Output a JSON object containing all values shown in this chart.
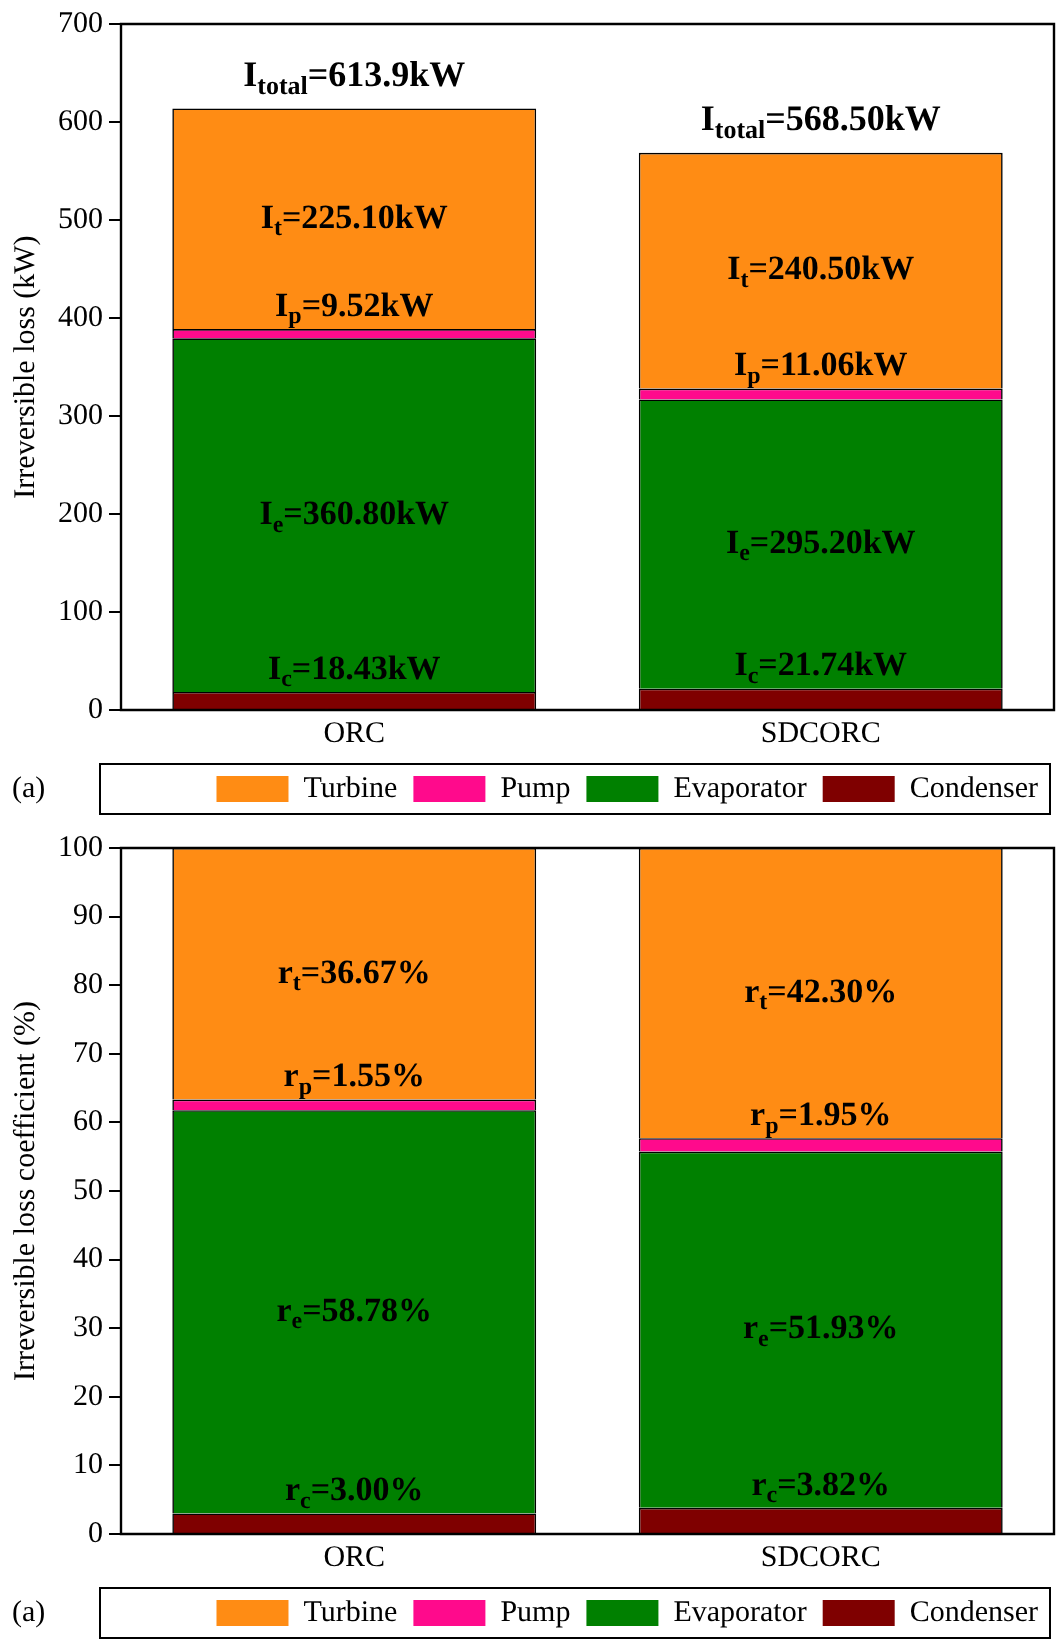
{
  "chart_data": [
    {
      "type": "bar",
      "stacked": true,
      "categories": [
        "ORC",
        "SDCORC"
      ],
      "ylabel": "Irreversible loss (kW)",
      "ylim": [
        0,
        700
      ],
      "yticks": [
        0,
        100,
        200,
        300,
        400,
        500,
        600,
        700
      ],
      "legend": "bottom",
      "annotations": [
        "(a)"
      ],
      "totals": [
        "I$_{total}$=613.9kW",
        "I$_{total}$=568.50kW"
      ],
      "series": [
        {
          "name": "Condenser",
          "color": "#7f0000",
          "values": [
            18.43,
            21.74
          ],
          "value_labels": [
            "I$_{c}$=18.43kW",
            "I$_{c}$=21.74kW"
          ]
        },
        {
          "name": "Evaporator",
          "color": "#008000",
          "values": [
            360.8,
            295.2
          ],
          "value_labels": [
            "I$_{e}$=360.80kW",
            "I$_{e}$=295.20kW"
          ]
        },
        {
          "name": "Pump",
          "color": "#ff0a8c",
          "values": [
            9.52,
            11.06
          ],
          "value_labels": [
            "I$_{p}$=9.52kW",
            "I$_{p}$=11.06kW"
          ]
        },
        {
          "name": "Turbine",
          "color": "#ff8c14",
          "values": [
            225.1,
            240.5
          ],
          "value_labels": [
            "I$_{t}$=225.10kW",
            "I$_{t}$=240.50kW"
          ]
        }
      ]
    },
    {
      "type": "bar",
      "stacked": true,
      "categories": [
        "ORC",
        "SDCORC"
      ],
      "ylabel": "Irreversible loss coefficient (%)",
      "ylim": [
        0,
        100
      ],
      "yticks": [
        0,
        10,
        20,
        30,
        40,
        50,
        60,
        70,
        80,
        90,
        100
      ],
      "legend": "bottom",
      "annotations": [
        "(a)"
      ],
      "series": [
        {
          "name": "Condenser",
          "color": "#7f0000",
          "values": [
            3.0,
            3.82
          ],
          "value_labels": [
            "r$_{c}$=3.00%",
            "r$_{c}$=3.82%"
          ]
        },
        {
          "name": "Evaporator",
          "color": "#008000",
          "values": [
            58.78,
            51.93
          ],
          "value_labels": [
            "r$_{e}$=58.78%",
            "r$_{e}$=51.93%"
          ]
        },
        {
          "name": "Pump",
          "color": "#ff0a8c",
          "values": [
            1.55,
            1.95
          ],
          "value_labels": [
            "r$_{p}$=1.55%",
            "r$_{p}$=1.95%"
          ]
        },
        {
          "name": "Turbine",
          "color": "#ff8c14",
          "values": [
            36.67,
            42.3
          ],
          "value_labels": [
            "r$_{t}$=36.67%",
            "r$_{t}$=42.30%"
          ]
        }
      ]
    }
  ]
}
